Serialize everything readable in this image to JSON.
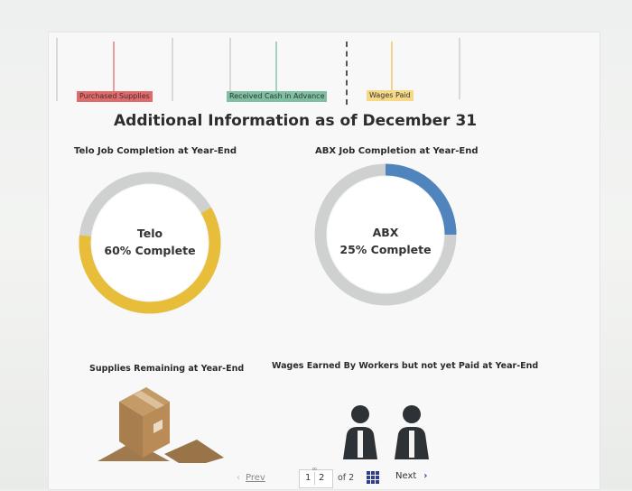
{
  "timeline": {
    "labels": [
      {
        "text": "Purchased Supplies",
        "bg": "#e36a6a"
      },
      {
        "text": "Received Cash in Advance",
        "bg": "#7fbfa3"
      },
      {
        "text": "Wages Paid",
        "bg": "#f5d987"
      }
    ]
  },
  "main_title": "Additional Information as of December 31",
  "charts": {
    "telo": {
      "title": "Telo Job Completion at Year-End",
      "name": "Telo",
      "percent_label": "60% Complete",
      "percent": 60,
      "color": "#e8bd3a"
    },
    "abx": {
      "title": "ABX Job Completion at Year-End",
      "name": "ABX",
      "percent_label": "25% Complete",
      "percent": 25,
      "color": "#4f84bd"
    },
    "remaining_color": "#cfd0d0"
  },
  "sections": {
    "supplies": {
      "title": "Supplies Remaining at Year-End",
      "icon": "box-icon"
    },
    "wages": {
      "title": "Wages Earned By Workers but not yet Paid at Year-End",
      "icon": "workers-icon"
    }
  },
  "pagination": {
    "prev_label": "Prev",
    "page_1": "1",
    "page_2": "2",
    "of_label": "of 2",
    "next_label": "Next"
  }
}
